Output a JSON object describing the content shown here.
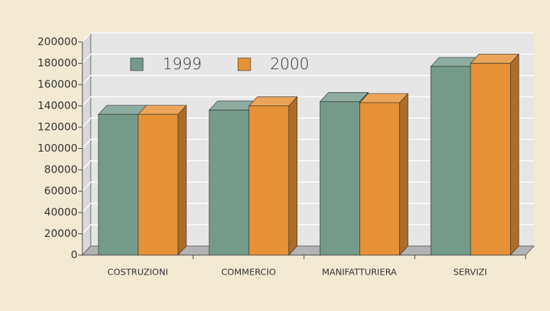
{
  "chart_data": {
    "type": "bar3d",
    "categories": [
      "COSTRUZIONI",
      "COMMERCIO",
      "MANIFATTURIERA",
      "SERVIZI"
    ],
    "series": [
      {
        "name": "1999",
        "color": "#749a8a",
        "values": [
          132000,
          136000,
          144000,
          177000
        ]
      },
      {
        "name": "2000",
        "color": "#e69135",
        "values": [
          132000,
          140000,
          143000,
          180000
        ]
      }
    ],
    "ylim": [
      0,
      200000
    ],
    "yticks": [
      0,
      20000,
      40000,
      60000,
      80000,
      100000,
      120000,
      140000,
      160000,
      180000,
      200000
    ],
    "grid": true
  }
}
